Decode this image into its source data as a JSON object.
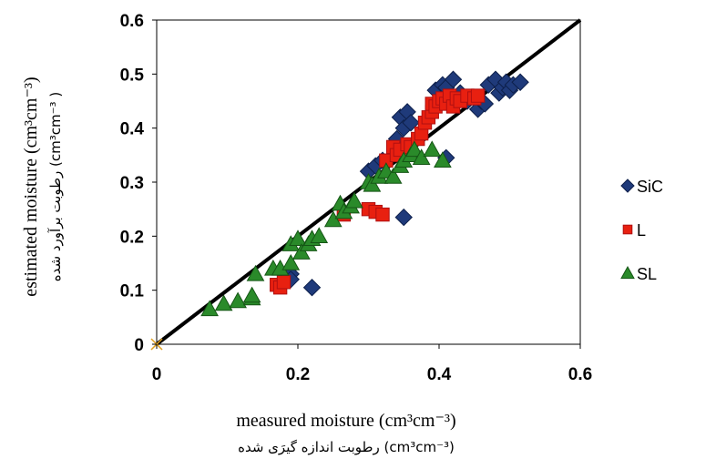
{
  "chart_data": {
    "type": "scatter",
    "xlim": [
      0,
      0.6
    ],
    "ylim": [
      0,
      0.6
    ],
    "x_ticks": [
      "0",
      "0.2",
      "0.4",
      "0.6"
    ],
    "y_ticks": [
      "0",
      "0.1",
      "0.2",
      "0.3",
      "0.4",
      "0.5",
      "0.6"
    ],
    "xlabel_line1": "measured moisture (cm³cm⁻³)",
    "xlabel_line2": "رطوبت اندازه گیرَی شده (cm³cm⁻³)",
    "ylabel_line1": "estimated moisture (cm³cm⁻³)",
    "ylabel_line2": "رطوبت برآورد شده (cm³cm⁻³ )",
    "reference_line": [
      [
        0,
        0
      ],
      [
        0.6,
        0.6
      ]
    ],
    "legend_position": "right",
    "series": [
      {
        "name": "SiC",
        "marker": "diamond",
        "color": "#1f3a7a",
        "points": [
          [
            0.19,
            0.13
          ],
          [
            0.19,
            0.12
          ],
          [
            0.22,
            0.105
          ],
          [
            0.3,
            0.32
          ],
          [
            0.31,
            0.33
          ],
          [
            0.32,
            0.34
          ],
          [
            0.34,
            0.38
          ],
          [
            0.345,
            0.42
          ],
          [
            0.35,
            0.4
          ],
          [
            0.355,
            0.43
          ],
          [
            0.36,
            0.41
          ],
          [
            0.35,
            0.235
          ],
          [
            0.41,
            0.345
          ],
          [
            0.395,
            0.47
          ],
          [
            0.405,
            0.48
          ],
          [
            0.41,
            0.475
          ],
          [
            0.42,
            0.49
          ],
          [
            0.43,
            0.465
          ],
          [
            0.44,
            0.45
          ],
          [
            0.455,
            0.435
          ],
          [
            0.46,
            0.45
          ],
          [
            0.465,
            0.445
          ],
          [
            0.47,
            0.48
          ],
          [
            0.48,
            0.49
          ],
          [
            0.485,
            0.465
          ],
          [
            0.49,
            0.475
          ],
          [
            0.495,
            0.485
          ],
          [
            0.5,
            0.47
          ],
          [
            0.505,
            0.48
          ],
          [
            0.515,
            0.485
          ]
        ]
      },
      {
        "name": "L",
        "marker": "square",
        "color": "#e82010",
        "points": [
          [
            0.17,
            0.11
          ],
          [
            0.175,
            0.105
          ],
          [
            0.18,
            0.115
          ],
          [
            0.265,
            0.24
          ],
          [
            0.3,
            0.25
          ],
          [
            0.31,
            0.245
          ],
          [
            0.32,
            0.24
          ],
          [
            0.325,
            0.34
          ],
          [
            0.335,
            0.365
          ],
          [
            0.34,
            0.35
          ],
          [
            0.345,
            0.36
          ],
          [
            0.355,
            0.37
          ],
          [
            0.36,
            0.365
          ],
          [
            0.37,
            0.38
          ],
          [
            0.375,
            0.39
          ],
          [
            0.38,
            0.41
          ],
          [
            0.385,
            0.42
          ],
          [
            0.39,
            0.43
          ],
          [
            0.39,
            0.445
          ],
          [
            0.395,
            0.44
          ],
          [
            0.4,
            0.45
          ],
          [
            0.405,
            0.455
          ],
          [
            0.41,
            0.445
          ],
          [
            0.415,
            0.46
          ],
          [
            0.42,
            0.44
          ],
          [
            0.425,
            0.455
          ],
          [
            0.43,
            0.45
          ],
          [
            0.44,
            0.46
          ],
          [
            0.45,
            0.455
          ],
          [
            0.455,
            0.46
          ]
        ]
      },
      {
        "name": "SL",
        "marker": "triangle",
        "color": "#2a8a2a",
        "points": [
          [
            0.075,
            0.065
          ],
          [
            0.095,
            0.075
          ],
          [
            0.115,
            0.08
          ],
          [
            0.135,
            0.085
          ],
          [
            0.14,
            0.13
          ],
          [
            0.135,
            0.09
          ],
          [
            0.165,
            0.14
          ],
          [
            0.175,
            0.14
          ],
          [
            0.19,
            0.15
          ],
          [
            0.19,
            0.185
          ],
          [
            0.2,
            0.195
          ],
          [
            0.205,
            0.17
          ],
          [
            0.215,
            0.185
          ],
          [
            0.22,
            0.195
          ],
          [
            0.23,
            0.2
          ],
          [
            0.25,
            0.23
          ],
          [
            0.26,
            0.26
          ],
          [
            0.265,
            0.245
          ],
          [
            0.275,
            0.255
          ],
          [
            0.28,
            0.265
          ],
          [
            0.3,
            0.3
          ],
          [
            0.305,
            0.295
          ],
          [
            0.315,
            0.31
          ],
          [
            0.325,
            0.32
          ],
          [
            0.335,
            0.31
          ],
          [
            0.345,
            0.33
          ],
          [
            0.35,
            0.34
          ],
          [
            0.36,
            0.35
          ],
          [
            0.365,
            0.36
          ],
          [
            0.375,
            0.345
          ],
          [
            0.39,
            0.36
          ],
          [
            0.405,
            0.34
          ]
        ]
      }
    ]
  }
}
